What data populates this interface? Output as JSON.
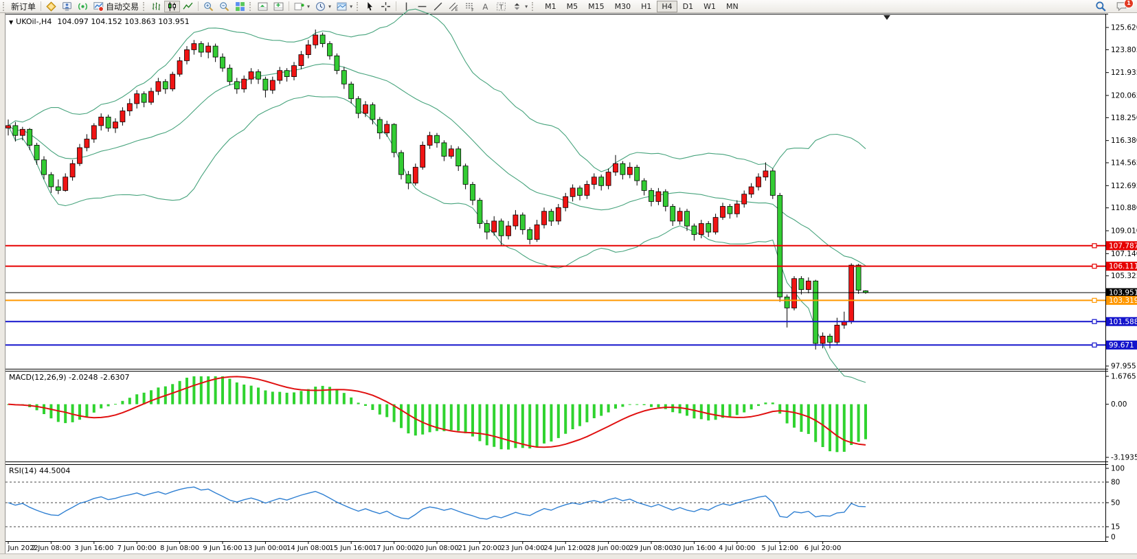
{
  "toolbar": {
    "new_order": "新订单",
    "autotrading": "自动交易",
    "timeframes": [
      "M1",
      "M5",
      "M15",
      "M30",
      "H1",
      "H4",
      "D1",
      "W1",
      "MN"
    ],
    "active_timeframe": "H4",
    "notification_badge": "1"
  },
  "chart_data": {
    "type": "candlestick",
    "title": "UKOil-,H4",
    "current_bar_text": "104.097 104.152 103.863 103.951",
    "x_labels": [
      "1 Jun 2022",
      "2 Jun 08:00",
      "3 Jun 16:00",
      "7 Jun 00:00",
      "8 Jun 08:00",
      "9 Jun 16:00",
      "13 Jun 00:00",
      "14 Jun 08:00",
      "15 Jun 16:00",
      "17 Jun 00:00",
      "20 Jun 08:00",
      "21 Jun 20:00",
      "23 Jun 04:00",
      "24 Jun 12:00",
      "28 Jun 00:00",
      "29 Jun 08:00",
      "30 Jun 16:00",
      "4 Jul 00:00",
      "5 Jul 12:00",
      "6 Jul 20:00"
    ],
    "bars_per_label": 6,
    "y_axis_ticks": [
      "125.620",
      "123.805",
      "121.935",
      "120.065",
      "118.250",
      "116.380",
      "114.565",
      "112.695",
      "110.880",
      "109.010",
      "107.140",
      "105.325",
      "97.955"
    ],
    "price_lines": [
      {
        "label": "107.787",
        "price": 107.787,
        "color": "#e60000",
        "width": 2,
        "handle": true
      },
      {
        "label": "106.111",
        "price": 106.111,
        "color": "#e60000",
        "width": 2,
        "handle": true
      },
      {
        "label": "103.951",
        "price": 103.951,
        "color": "#000000",
        "width": 1,
        "handle": false
      },
      {
        "label": "103.319",
        "price": 103.319,
        "color": "#ff9800",
        "width": 2,
        "handle": true
      },
      {
        "label": "101.588",
        "price": 101.588,
        "color": "#1414cc",
        "width": 2,
        "handle": true
      },
      {
        "label": "99.671",
        "price": 99.671,
        "color": "#1414cc",
        "width": 2,
        "handle": true
      }
    ],
    "colors": {
      "up": "#f01414",
      "down": "#33cc33",
      "bollinger": "#46a37c",
      "macd_hist": "#2fd32f",
      "macd_signal": "#e01010",
      "rsi_line": "#2e7fd2"
    },
    "indicators": {
      "bollinger": {
        "period": 20,
        "deviation": 2
      },
      "macd": {
        "display": "MACD(12,26,9) -2.0248 -2.6307",
        "fast": 12,
        "slow": 26,
        "signal": 9,
        "value": -2.0248,
        "signal_value": -2.6307,
        "axis": [
          "1.6765",
          "0.00",
          "-3.1935"
        ],
        "range": [
          -3.1935,
          1.6765
        ]
      },
      "rsi": {
        "display": "RSI(14) 44.5004",
        "period": 14,
        "value": 44.5004,
        "axis": [
          "100",
          "80",
          "50",
          "15",
          "0"
        ],
        "dashed_levels": [
          80,
          50,
          15
        ]
      }
    },
    "ohlc": [
      [
        117.4,
        118.1,
        116.8,
        117.6
      ],
      [
        117.6,
        117.9,
        116.3,
        116.8
      ],
      [
        116.8,
        117.5,
        116.4,
        117.3
      ],
      [
        117.3,
        117.4,
        115.6,
        116.0
      ],
      [
        116.0,
        116.2,
        114.4,
        114.8
      ],
      [
        114.8,
        115.1,
        113.2,
        113.6
      ],
      [
        113.6,
        113.8,
        112.1,
        112.6
      ],
      [
        112.6,
        113.2,
        112.0,
        112.3
      ],
      [
        112.3,
        113.7,
        112.2,
        113.4
      ],
      [
        113.4,
        114.8,
        113.1,
        114.5
      ],
      [
        114.5,
        116.1,
        114.3,
        115.8
      ],
      [
        115.8,
        116.9,
        115.5,
        116.5
      ],
      [
        116.5,
        117.8,
        116.2,
        117.6
      ],
      [
        117.6,
        118.6,
        117.2,
        118.3
      ],
      [
        118.3,
        118.5,
        117.1,
        117.4
      ],
      [
        117.4,
        118.2,
        117.0,
        117.9
      ],
      [
        117.9,
        119.1,
        117.6,
        118.8
      ],
      [
        118.8,
        119.8,
        118.4,
        119.4
      ],
      [
        119.4,
        120.5,
        119.0,
        120.2
      ],
      [
        120.2,
        120.4,
        119.1,
        119.5
      ],
      [
        119.5,
        120.7,
        119.3,
        120.4
      ],
      [
        120.4,
        121.5,
        120.1,
        121.2
      ],
      [
        121.2,
        121.4,
        120.2,
        120.6
      ],
      [
        120.6,
        122.0,
        120.4,
        121.8
      ],
      [
        121.8,
        123.2,
        121.6,
        122.9
      ],
      [
        122.9,
        124.1,
        122.6,
        123.8
      ],
      [
        123.8,
        124.6,
        123.4,
        124.3
      ],
      [
        124.3,
        124.5,
        123.2,
        123.6
      ],
      [
        123.6,
        124.4,
        123.1,
        124.1
      ],
      [
        124.1,
        124.3,
        122.8,
        123.2
      ],
      [
        123.2,
        123.5,
        122.0,
        122.3
      ],
      [
        122.3,
        122.6,
        120.9,
        121.2
      ],
      [
        121.2,
        121.5,
        120.2,
        120.6
      ],
      [
        120.6,
        121.7,
        120.3,
        121.4
      ],
      [
        121.4,
        122.3,
        121.0,
        122.0
      ],
      [
        122.0,
        122.2,
        121.0,
        121.4
      ],
      [
        121.4,
        121.6,
        119.9,
        120.5
      ],
      [
        120.5,
        121.6,
        120.2,
        121.3
      ],
      [
        121.3,
        122.4,
        121.0,
        122.1
      ],
      [
        122.1,
        122.3,
        121.2,
        121.6
      ],
      [
        121.6,
        122.8,
        121.3,
        122.5
      ],
      [
        122.5,
        123.7,
        122.2,
        123.4
      ],
      [
        123.4,
        124.6,
        123.1,
        124.2
      ],
      [
        124.2,
        125.45,
        123.9,
        125.0
      ],
      [
        125.0,
        125.2,
        124.0,
        124.3
      ],
      [
        124.3,
        124.5,
        123.0,
        123.3
      ],
      [
        123.3,
        123.5,
        121.8,
        122.1
      ],
      [
        122.1,
        122.4,
        120.6,
        121.0
      ],
      [
        121.0,
        121.2,
        119.4,
        119.8
      ],
      [
        119.8,
        120.0,
        118.2,
        118.6
      ],
      [
        118.6,
        119.6,
        118.3,
        119.3
      ],
      [
        119.3,
        119.5,
        117.7,
        118.1
      ],
      [
        118.1,
        118.3,
        116.5,
        117.0
      ],
      [
        117.0,
        118.0,
        116.7,
        117.7
      ],
      [
        117.7,
        117.8,
        115.0,
        115.4
      ],
      [
        115.4,
        115.6,
        113.2,
        113.6
      ],
      [
        113.6,
        113.9,
        112.4,
        112.9
      ],
      [
        112.9,
        114.5,
        112.7,
        114.2
      ],
      [
        114.2,
        116.3,
        114.0,
        116.0
      ],
      [
        116.0,
        117.1,
        115.7,
        116.8
      ],
      [
        116.8,
        117.0,
        115.8,
        116.2
      ],
      [
        116.2,
        116.4,
        114.7,
        115.1
      ],
      [
        115.1,
        116.0,
        114.9,
        115.7
      ],
      [
        115.7,
        115.9,
        113.9,
        114.3
      ],
      [
        114.3,
        114.5,
        112.4,
        112.8
      ],
      [
        112.8,
        113.0,
        111.1,
        111.5
      ],
      [
        111.5,
        111.7,
        109.2,
        109.6
      ],
      [
        109.6,
        109.9,
        108.3,
        108.9
      ],
      [
        108.9,
        110.2,
        108.6,
        109.8
      ],
      [
        109.8,
        110.0,
        107.8,
        108.6
      ],
      [
        108.6,
        109.8,
        108.3,
        109.4
      ],
      [
        109.4,
        110.7,
        109.1,
        110.3
      ],
      [
        110.3,
        110.5,
        108.7,
        109.1
      ],
      [
        109.1,
        109.3,
        107.9,
        108.3
      ],
      [
        108.3,
        109.9,
        108.1,
        109.5
      ],
      [
        109.5,
        110.9,
        109.2,
        110.6
      ],
      [
        110.6,
        110.8,
        109.4,
        109.8
      ],
      [
        109.8,
        111.2,
        109.5,
        110.9
      ],
      [
        110.9,
        112.1,
        110.6,
        111.8
      ],
      [
        111.8,
        112.8,
        111.4,
        112.5
      ],
      [
        112.5,
        112.7,
        111.5,
        111.9
      ],
      [
        111.9,
        113.1,
        111.6,
        112.8
      ],
      [
        112.8,
        113.7,
        112.4,
        113.4
      ],
      [
        113.4,
        113.6,
        112.3,
        112.7
      ],
      [
        112.7,
        114.1,
        112.4,
        113.8
      ],
      [
        113.8,
        115.2,
        113.5,
        114.5
      ],
      [
        114.5,
        114.7,
        113.2,
        113.6
      ],
      [
        113.6,
        114.6,
        113.3,
        114.2
      ],
      [
        114.2,
        114.4,
        112.7,
        113.1
      ],
      [
        113.1,
        113.3,
        111.9,
        112.3
      ],
      [
        112.3,
        112.5,
        111.0,
        111.4
      ],
      [
        111.4,
        112.5,
        111.1,
        112.2
      ],
      [
        112.2,
        112.4,
        110.6,
        111.0
      ],
      [
        111.0,
        111.2,
        109.4,
        109.8
      ],
      [
        109.8,
        110.9,
        109.5,
        110.6
      ],
      [
        110.6,
        110.8,
        109.0,
        109.4
      ],
      [
        109.4,
        109.6,
        108.2,
        108.7
      ],
      [
        108.7,
        109.9,
        108.4,
        109.6
      ],
      [
        109.6,
        109.8,
        108.5,
        108.9
      ],
      [
        108.9,
        110.4,
        108.7,
        110.1
      ],
      [
        110.1,
        111.3,
        109.9,
        111.0
      ],
      [
        111.0,
        111.2,
        110.0,
        110.4
      ],
      [
        110.4,
        111.5,
        110.1,
        111.2
      ],
      [
        111.2,
        112.3,
        110.9,
        112.0
      ],
      [
        112.0,
        112.9,
        111.7,
        112.6
      ],
      [
        112.6,
        113.7,
        112.3,
        113.4
      ],
      [
        113.4,
        114.6,
        113.1,
        113.9
      ],
      [
        113.9,
        114.1,
        111.6,
        111.9
      ],
      [
        111.9,
        112.1,
        103.2,
        103.6
      ],
      [
        103.6,
        103.8,
        101.1,
        102.7
      ],
      [
        102.7,
        105.3,
        102.5,
        105.1
      ],
      [
        105.1,
        105.3,
        103.8,
        104.2
      ],
      [
        104.2,
        105.2,
        103.9,
        104.9
      ],
      [
        104.9,
        105.0,
        99.3,
        99.8
      ],
      [
        99.8,
        100.7,
        99.4,
        100.4
      ],
      [
        100.4,
        100.6,
        99.4,
        99.9
      ],
      [
        99.9,
        101.9,
        99.7,
        101.3
      ],
      [
        101.3,
        102.4,
        101.0,
        101.6
      ],
      [
        101.6,
        106.35,
        101.4,
        106.2
      ],
      [
        106.2,
        106.3,
        103.85,
        104.15
      ],
      [
        104.097,
        104.152,
        103.863,
        103.951
      ]
    ]
  }
}
